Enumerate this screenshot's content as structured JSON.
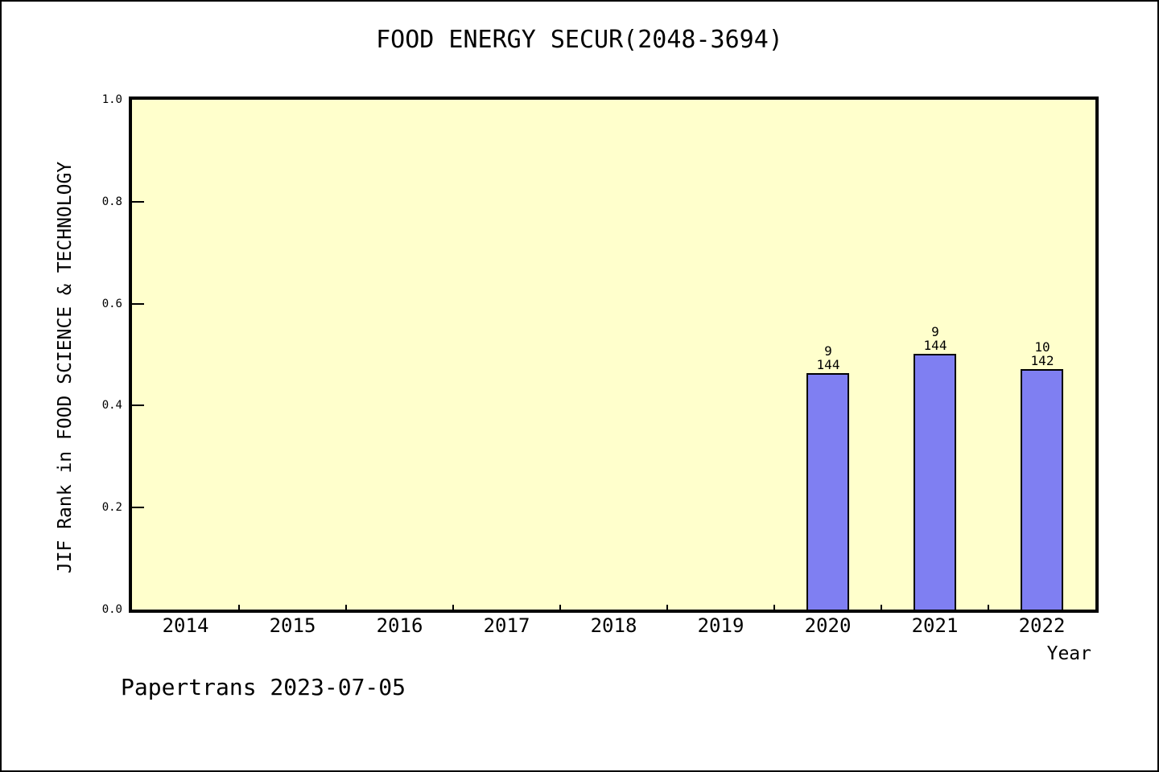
{
  "title": "FOOD ENERGY SECUR(2048-3694)",
  "footer": "Papertrans 2023-07-05",
  "colors": {
    "page_background": "#ffffff",
    "plot_background": "#ffffcc",
    "bar_fill": "#7f7ff2",
    "axis_and_text": "#000000"
  },
  "chart_data": {
    "type": "bar",
    "title": "FOOD ENERGY SECUR(2048-3694)",
    "xlabel": "Year",
    "ylabel": "JIF Rank in FOOD SCIENCE & TECHNOLOGY",
    "categories": [
      "2014",
      "2015",
      "2016",
      "2017",
      "2018",
      "2019",
      "2020",
      "2021",
      "2022"
    ],
    "y_ticks": [
      "0.0",
      "0.2",
      "0.4",
      "0.6",
      "0.8",
      "1.0"
    ],
    "ylim": [
      0.0,
      1.0
    ],
    "grid": false,
    "legend": false,
    "bars": [
      {
        "year": "2020",
        "value": 0.463,
        "label_top": "9",
        "label_bottom": "144"
      },
      {
        "year": "2021",
        "value": 0.502,
        "label_top": "9",
        "label_bottom": "144"
      },
      {
        "year": "2022",
        "value": 0.472,
        "label_top": "10",
        "label_bottom": "142"
      }
    ]
  }
}
